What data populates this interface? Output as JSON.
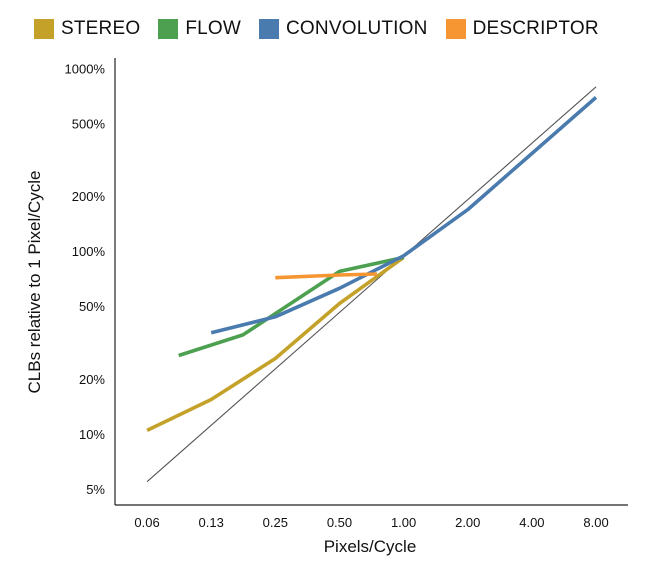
{
  "chart_data": {
    "type": "line",
    "xlabel": "Pixels/Cycle",
    "ylabel": "CLBs relative to 1 Pixel/Cycle",
    "x_ticks": [
      "0.06",
      "0.13",
      "0.25",
      "0.50",
      "1.00",
      "2.00",
      "4.00",
      "8.00"
    ],
    "x_tick_values": [
      0.0625,
      0.125,
      0.25,
      0.5,
      1,
      2,
      4,
      8
    ],
    "y_ticks": [
      "5%",
      "10%",
      "20%",
      "50%",
      "100%",
      "200%",
      "500%",
      "1000%"
    ],
    "y_tick_values": [
      5,
      10,
      20,
      50,
      100,
      200,
      500,
      1000
    ],
    "x_scale": "log",
    "y_scale": "log",
    "xlim": [
      0.0442,
      11.3
    ],
    "ylim": [
      4.1,
      1150
    ],
    "grid": false,
    "legend_position": "top",
    "series": [
      {
        "name": "STEREO",
        "color": "#C4A22A",
        "x": [
          0.0625,
          0.125,
          0.25,
          0.5,
          1
        ],
        "y": [
          10.5,
          15.5,
          26,
          52,
          93
        ]
      },
      {
        "name": "FLOW",
        "color": "#4CA050",
        "x": [
          0.088,
          0.176,
          0.5,
          1
        ],
        "y": [
          27,
          35,
          78,
          93
        ]
      },
      {
        "name": "CONVOLUTION",
        "color": "#4A7BAE",
        "x": [
          0.125,
          0.25,
          0.5,
          1,
          2,
          4,
          8
        ],
        "y": [
          36,
          44,
          63,
          95,
          170,
          345,
          700
        ]
      },
      {
        "name": "DESCRIPTOR",
        "color": "#F59632",
        "x": [
          0.25,
          0.5,
          0.75
        ],
        "y": [
          72,
          74.5,
          75.5
        ]
      }
    ],
    "reference_line": {
      "color": "#555555",
      "x": [
        0.0625,
        8
      ],
      "y": [
        5.5,
        800
      ]
    }
  }
}
